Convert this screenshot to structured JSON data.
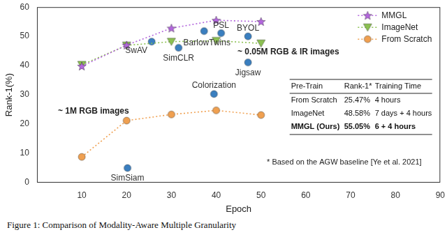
{
  "chart_data": {
    "type": "line",
    "x_label": "Epoch",
    "y_label": "Rank-1(%)",
    "xlim": [
      0,
      90
    ],
    "xticks": [
      10,
      20,
      30,
      40,
      50,
      60,
      70,
      80,
      90
    ],
    "ylim": [
      0,
      60
    ],
    "yticks": [
      0,
      10,
      20,
      30,
      40,
      50,
      60
    ],
    "grid": false,
    "legend": "upper right",
    "x": [
      10,
      20,
      30,
      40,
      50
    ],
    "series": [
      {
        "name": "MMGL",
        "type": "line",
        "color": "#b366dd",
        "marker": "star",
        "line_style": "dotted",
        "values": [
          39.8,
          47.0,
          52.8,
          55.5,
          55.05
        ]
      },
      {
        "name": "ImageNet",
        "type": "line",
        "color": "#8cc152",
        "marker": "triangle_down",
        "line_style": "dotted",
        "values": [
          40.3,
          46.9,
          48.2,
          48.5,
          47.6
        ]
      },
      {
        "name": "From Scratch",
        "type": "line",
        "color": "#f0a050",
        "marker": "circle",
        "line_style": "dotted",
        "values": [
          8.8,
          21.2,
          23.3,
          24.7,
          23.1
        ]
      }
    ],
    "points": {
      "type": "scatter",
      "color": "#3a7fc0",
      "marker": "circle",
      "items": [
        {
          "label": "SwAV",
          "x": 25.6,
          "y": 48.2
        },
        {
          "label": "SimCLR",
          "x": 31.6,
          "y": 46.1
        },
        {
          "label": "BarlowTwins",
          "x": 37.3,
          "y": 51.8
        },
        {
          "label": "PSL",
          "x": 41.1,
          "y": 51.1
        },
        {
          "label": "BYOL",
          "x": 47.1,
          "y": 50.0
        },
        {
          "label": "Jigsaw",
          "x": 47.1,
          "y": 41.1
        },
        {
          "label": "Colorization",
          "x": 39.5,
          "y": 30.3
        },
        {
          "label": "SimSiam",
          "x": 20.2,
          "y": 5.0
        }
      ]
    },
    "annotations": [
      "~ 1M RGB images",
      "~ 0.05M RGB & IR images"
    ],
    "table": {
      "header": [
        "Pre-Train",
        "Rank-1*",
        "Training Time"
      ],
      "rows": [
        [
          "From Scratch",
          "25.47%",
          "4 hours"
        ],
        [
          "ImageNet",
          "48.58%",
          "7 days + 4 hours"
        ],
        [
          "MMGL (Ours)",
          "55.05%",
          "6 + 4 hours"
        ]
      ]
    },
    "footnote": "* Based on the AGW baseline [Ye et al. 2021]"
  },
  "caption": "Figure 1:  Comparison of Modality-Aware Multiple Granularity"
}
